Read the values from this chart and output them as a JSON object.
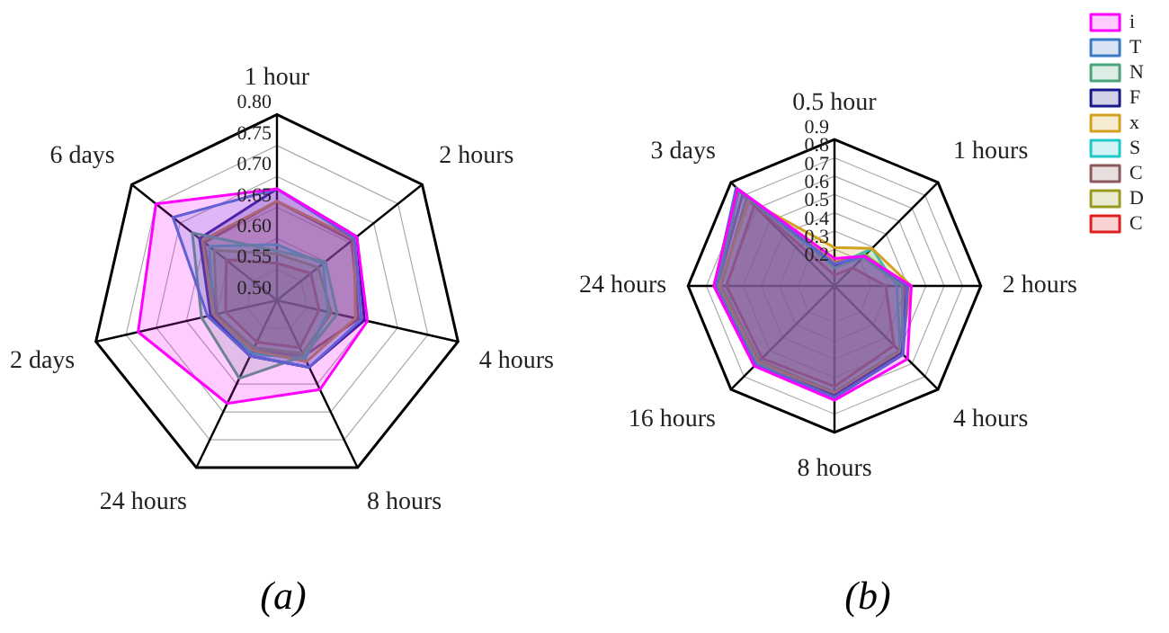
{
  "chart_data": [
    {
      "type": "radar",
      "title": "(a)",
      "categories": [
        "1 hour",
        "2 hours",
        "4 hours",
        "8 hours",
        "24 hours",
        "2 days",
        "6 days"
      ],
      "ylim": [
        0.5,
        0.8
      ],
      "yticks": [
        {
          "value": 0.5,
          "label": "0.50"
        },
        {
          "value": 0.55,
          "label": "0.55"
        },
        {
          "value": 0.6,
          "label": "0.60"
        },
        {
          "value": 0.65,
          "label": "0.65"
        },
        {
          "value": 0.7,
          "label": "0.70"
        },
        {
          "value": 0.75,
          "label": "0.75"
        },
        {
          "value": 0.8,
          "label": "0.80"
        }
      ],
      "grid": true,
      "legend": false,
      "marker": "none",
      "series": [
        {
          "color": "#ff00ff",
          "values": [
            0.68,
            0.665,
            0.65,
            0.66,
            0.685,
            0.73,
            0.75
          ]
        },
        {
          "color": "#3a78c8",
          "values": [
            0.68,
            0.66,
            0.64,
            0.62,
            0.6,
            0.615,
            0.715
          ]
        },
        {
          "color": "#4aa37a",
          "values": [
            0.58,
            0.6,
            0.6,
            0.6,
            0.64,
            0.625,
            0.675
          ]
        },
        {
          "color": "#1a1a8c",
          "values": [
            0.68,
            0.665,
            0.645,
            0.62,
            0.6,
            0.61,
            0.66
          ]
        },
        {
          "color": "#d4a020",
          "values": [
            0.66,
            0.66,
            0.63,
            0.61,
            0.59,
            0.605,
            0.655
          ]
        },
        {
          "color": "#20c8c8",
          "values": [
            0.59,
            0.595,
            0.585,
            0.605,
            0.595,
            0.605,
            0.64
          ]
        },
        {
          "color": "#8c5a5a",
          "values": [
            0.66,
            0.655,
            0.635,
            0.6,
            0.59,
            0.6,
            0.65
          ]
        },
        {
          "color": "#9a9a20",
          "values": [
            0.575,
            0.585,
            0.59,
            0.595,
            0.585,
            0.6,
            0.63
          ]
        },
        {
          "color": "#e02020",
          "values": [
            0.56,
            0.57,
            0.57,
            0.585,
            0.575,
            0.585,
            0.605
          ]
        }
      ]
    },
    {
      "type": "radar",
      "title": "(b)",
      "categories": [
        "0.5 hour",
        "1 hours",
        "2 hours",
        "4 hours",
        "8 hours",
        "16 hours",
        "24 hours",
        "3 days"
      ],
      "ylim": [
        0.1,
        0.9
      ],
      "yticks": [
        0.2,
        0.3,
        0.4,
        0.5,
        0.6,
        0.7,
        0.8,
        0.9
      ],
      "grid": true,
      "legend": "top right",
      "marker": "none",
      "series": [
        {
          "name": "i",
          "color": "#ff00ff",
          "values": [
            0.25,
            0.33,
            0.52,
            0.665,
            0.725,
            0.72,
            0.76,
            0.85
          ]
        },
        {
          "name": "T",
          "color": "#3a78c8",
          "values": [
            0.22,
            0.33,
            0.5,
            0.63,
            0.71,
            0.71,
            0.755,
            0.86
          ]
        },
        {
          "name": "N",
          "color": "#4aa37a",
          "values": [
            0.2,
            0.32,
            0.47,
            0.63,
            0.71,
            0.7,
            0.75,
            0.84
          ]
        },
        {
          "name": "F",
          "color": "#1a1a8c",
          "values": [
            0.21,
            0.33,
            0.5,
            0.62,
            0.7,
            0.71,
            0.75,
            0.84
          ]
        },
        {
          "name": "x",
          "color": "#d4a020",
          "values": [
            0.31,
            0.39,
            0.52,
            0.61,
            0.69,
            0.69,
            0.73,
            0.76
          ]
        },
        {
          "name": "S",
          "color": "#20c8c8",
          "values": [
            0.21,
            0.39,
            0.44,
            0.61,
            0.7,
            0.7,
            0.74,
            0.84
          ]
        },
        {
          "name": "C",
          "color": "#8c5a5a",
          "values": [
            0.21,
            0.33,
            0.48,
            0.62,
            0.7,
            0.7,
            0.74,
            0.81
          ]
        },
        {
          "name": "D",
          "color": "#9a9a20",
          "values": [
            0.23,
            0.34,
            0.5,
            0.6,
            0.68,
            0.68,
            0.72,
            0.78
          ]
        },
        {
          "name": "C",
          "color": "#e02020",
          "values": [
            0.16,
            0.24,
            0.38,
            0.56,
            0.65,
            0.66,
            0.69,
            0.72
          ]
        }
      ]
    }
  ]
}
